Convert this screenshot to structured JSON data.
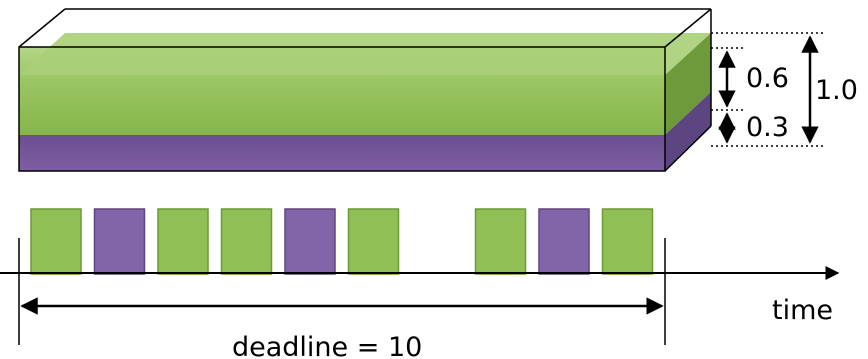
{
  "box": {
    "labels": {
      "green_fraction": "0.6",
      "purple_fraction": "0.3",
      "total": "1.0"
    },
    "colors": {
      "green": "#8fbf55",
      "green_light": "#b3d583",
      "green_side": "#78a23f",
      "purple": "#7e5ea2",
      "purple_side": "#6a4d8c",
      "outline": "#000000"
    }
  },
  "timeline": {
    "slots": [
      "green",
      "purple",
      "green",
      "green",
      "purple",
      "green",
      "gap",
      "green",
      "purple",
      "green"
    ],
    "time_label": "time",
    "deadline_label": "deadline  = 10",
    "colors": {
      "green": "#8fbf55",
      "green_border": "#6c9a35",
      "purple": "#8264a8",
      "purple_border": "#5f467f"
    }
  }
}
